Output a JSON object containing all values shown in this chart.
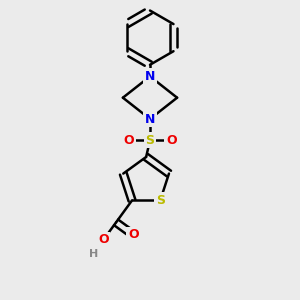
{
  "background_color": "#ebebeb",
  "atom_colors": {
    "C": "#000000",
    "N": "#0000ee",
    "O": "#ee0000",
    "S_thio": "#bbbb00",
    "S_sulfonyl": "#bbbb00",
    "H": "#888888"
  },
  "bond_color": "#000000",
  "bond_width": 1.8,
  "figsize": [
    3.0,
    3.0
  ],
  "dpi": 100
}
